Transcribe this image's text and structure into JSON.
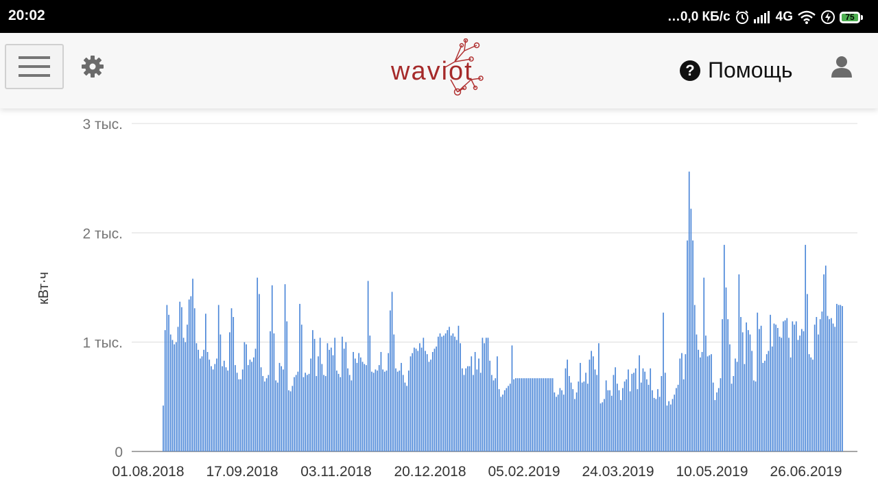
{
  "status_bar": {
    "time": "20:02",
    "network_speed": "…0,0 КБ/с",
    "network_type": "4G",
    "battery_level": "75"
  },
  "header": {
    "logo_text": "waviot",
    "help_label": "Помощь",
    "brand_color": "#a52a2a"
  },
  "chart_data": {
    "type": "bar",
    "ylabel": "кВт·ч",
    "ylim": [
      0,
      3000
    ],
    "yticks": [
      0,
      1000,
      2000,
      3000
    ],
    "ytick_labels": [
      "0",
      "1 тыс.",
      "2 тыс.",
      "3 тыс."
    ],
    "xtick_labels": [
      "01.08.2018",
      "17.09.2018",
      "03.11.2018",
      "20.12.2018",
      "05.02.2019",
      "24.03.2019",
      "10.05.2019",
      "26.06.2019"
    ],
    "bar_color": "#4a86d8",
    "grid": true,
    "start_date": "01.08.2018",
    "values": [
      420,
      1110,
      1340,
      1250,
      1070,
      1020,
      980,
      1000,
      1140,
      1370,
      1320,
      1040,
      1000,
      1160,
      1390,
      1420,
      1580,
      1310,
      990,
      930,
      850,
      870,
      930,
      1260,
      910,
      840,
      780,
      750,
      800,
      850,
      1340,
      1070,
      780,
      830,
      770,
      740,
      1090,
      1310,
      1230,
      790,
      720,
      660,
      660,
      750,
      1000,
      980,
      790,
      840,
      820,
      860,
      940,
      1590,
      1440,
      770,
      690,
      640,
      670,
      700,
      1100,
      1520,
      1080,
      650,
      630,
      810,
      780,
      750,
      1530,
      1190,
      560,
      550,
      600,
      680,
      700,
      730,
      1350,
      1160,
      680,
      720,
      700,
      710,
      850,
      1110,
      1030,
      690,
      870,
      1040,
      800,
      700,
      690,
      990,
      930,
      950,
      880,
      1040,
      740,
      710,
      680,
      1050,
      940,
      1000,
      760,
      700,
      650,
      910,
      850,
      810,
      900,
      860,
      820,
      800,
      790,
      1560,
      1060,
      730,
      720,
      750,
      740,
      790,
      910,
      750,
      730,
      740,
      900,
      1290,
      1460,
      1070,
      760,
      730,
      740,
      810,
      700,
      630,
      600,
      740,
      870,
      900,
      950,
      940,
      920,
      990,
      950,
      1040,
      920,
      890,
      820,
      840,
      910,
      940,
      960,
      1050,
      1080,
      1050,
      1060,
      1080,
      1110,
      1140,
      1060,
      1080,
      1050,
      1020,
      1150,
      990,
      760,
      700,
      760,
      780,
      780,
      870,
      700,
      910,
      750,
      850,
      720,
      1040,
      990,
      1040,
      1040,
      830,
      700,
      650,
      670,
      870,
      570,
      500,
      520,
      560,
      580,
      600,
      620,
      970,
      660,
      670,
      670,
      670,
      670,
      670,
      670,
      670,
      670,
      670,
      670,
      670,
      670,
      670,
      670,
      670,
      670,
      670,
      670,
      670,
      670,
      670,
      540,
      500,
      520,
      580,
      560,
      520,
      760,
      840,
      690,
      630,
      570,
      480,
      540,
      640,
      810,
      630,
      640,
      720,
      620,
      840,
      920,
      870,
      750,
      700,
      990,
      440,
      450,
      480,
      650,
      560,
      560,
      510,
      700,
      770,
      620,
      560,
      470,
      580,
      640,
      660,
      750,
      550,
      710,
      720,
      760,
      570,
      880,
      630,
      760,
      730,
      660,
      610,
      760,
      560,
      490,
      480,
      570,
      500,
      690,
      1270,
      720,
      420,
      460,
      430,
      480,
      520,
      580,
      610,
      850,
      900,
      660,
      890,
      1930,
      2560,
      2220,
      1930,
      1340,
      1070,
      930,
      860,
      910,
      1590,
      1060,
      870,
      880,
      890,
      630,
      470,
      540,
      580,
      670,
      1210,
      1890,
      1500,
      1210,
      980,
      620,
      690,
      850,
      820,
      1620,
      1230,
      1090,
      800,
      1180,
      1110,
      1070,
      920,
      650,
      640,
      1270,
      1120,
      1150,
      810,
      830,
      890,
      920,
      1250,
      960,
      1170,
      1160,
      1130,
      1050,
      1040,
      1190,
      1200,
      1220,
      1040,
      860,
      1190,
      1160,
      1190,
      1020,
      1060,
      1120,
      1100,
      1890,
      1440,
      890,
      860,
      840,
      1160,
      1230,
      1070,
      1210,
      1280,
      1620,
      1700,
      1240,
      1210,
      1220,
      1170,
      1140,
      1350,
      1340,
      1340,
      1330
    ]
  }
}
